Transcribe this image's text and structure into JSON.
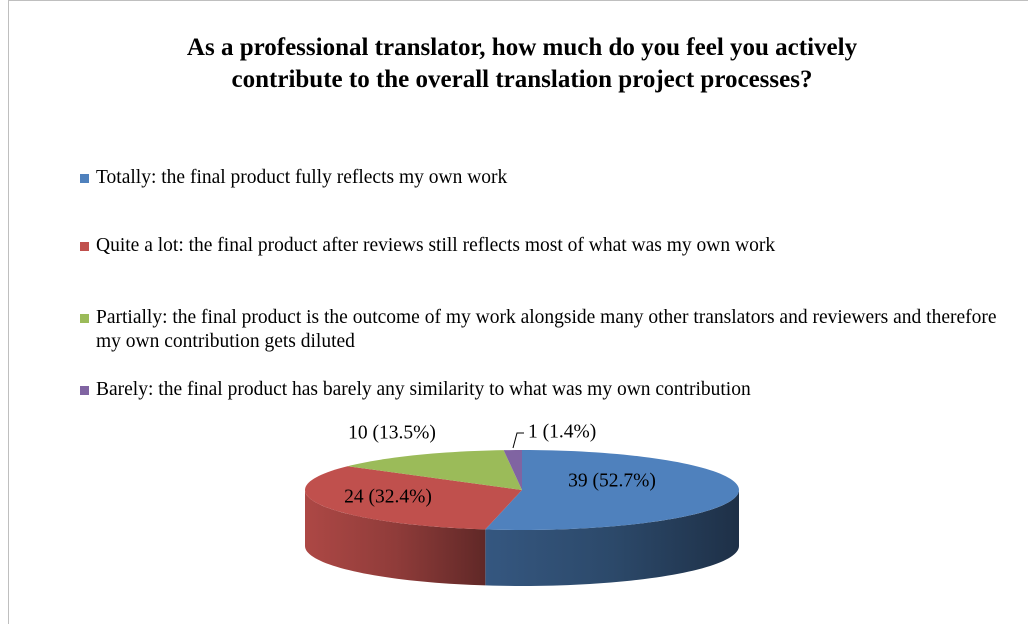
{
  "chart_data": {
    "type": "pie",
    "title": "As a professional translator, how much do you feel you actively contribute to the overall translation project processes?",
    "categories": [
      "Totally: the final product fully reflects my own work",
      "Quite a lot: the final product after reviews still reflects most of what was my own work",
      "Partially: the final product is the outcome of my work alongside many other translators and reviewers and therefore my own contribution gets diluted",
      "Barely: the final product has barely any similarity to what was my own contribution"
    ],
    "values": [
      39,
      24,
      10,
      1
    ],
    "value_labels": [
      "39 (52.7%)",
      "24 (32.4%)",
      "10 (13.5%)",
      "1 (1.4%)"
    ],
    "colors": [
      "#4f81bd",
      "#c0504d",
      "#9bbb59",
      "#8064a2"
    ],
    "legend": "top"
  }
}
